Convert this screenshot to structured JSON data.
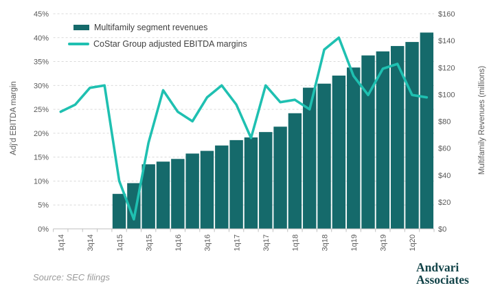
{
  "legend": {
    "bar_label": "Multifamily segment revenues",
    "line_label": "CoStar Group adjusted EBITDA margins"
  },
  "axes": {
    "left_title": "Adj'd EBITDA margin",
    "right_title": "Multifamily Revenues (millions)",
    "left_ticks": [
      "45%",
      "40%",
      "35%",
      "30%",
      "25%",
      "20%",
      "15%",
      "10%",
      "5%",
      "0%"
    ],
    "right_ticks": [
      "$160",
      "$140",
      "$120",
      "$100",
      "$80",
      "$60",
      "$40",
      "$20",
      "$0"
    ],
    "x_ticks": [
      "1q14",
      "3q14",
      "1q15",
      "3q15",
      "1q16",
      "3q16",
      "1q17",
      "3q17",
      "1q18",
      "3q18",
      "1q19",
      "3q19",
      "1q20"
    ]
  },
  "source": "Source: SEC filings",
  "logo": {
    "line1": "Andvari",
    "line2": "Associates"
  },
  "colors": {
    "bar": "#156a6b",
    "line": "#1fc0b1",
    "grid": "#d9d9d9",
    "axis": "#bfbfbf",
    "tick_text": "#595959",
    "legend_text": "#3f3f3f",
    "source_text": "#9a9a9a",
    "logo_text": "#134449"
  },
  "chart_data": {
    "type": "combo",
    "categories": [
      "1q14",
      "2q14",
      "3q14",
      "4q14",
      "1q15",
      "2q15",
      "3q15",
      "4q15",
      "1q16",
      "2q16",
      "3q16",
      "4q16",
      "1q17",
      "2q17",
      "3q17",
      "4q17",
      "1q18",
      "2q18",
      "3q18",
      "4q18",
      "1q19",
      "2q19",
      "3q19",
      "4q19",
      "1q20",
      "2q20"
    ],
    "series": [
      {
        "name": "Multifamily segment revenues",
        "type": "bar",
        "axis": "right",
        "unit": "$ millions",
        "values": [
          null,
          null,
          null,
          null,
          26,
          34,
          48,
          50,
          52,
          56,
          58,
          62,
          66,
          68,
          72,
          76,
          86,
          105,
          108,
          114,
          120,
          129,
          132,
          136,
          139,
          146
        ]
      },
      {
        "name": "CoStar Group adjusted EBITDA margins",
        "type": "line",
        "axis": "left",
        "unit": "%",
        "values": [
          24.5,
          26,
          29.5,
          30,
          10,
          2,
          18,
          29,
          24.5,
          22.5,
          27.5,
          30,
          26,
          19,
          30,
          26.5,
          27,
          25,
          37.5,
          40,
          32,
          28,
          33.5,
          34.5,
          28,
          27.5
        ]
      }
    ],
    "left_axis": {
      "label": "Adj'd EBITDA margin",
      "min": 0,
      "max": 45,
      "step": 5,
      "format": "percent"
    },
    "right_axis": {
      "label": "Multifamily Revenues (millions)",
      "min": 0,
      "max": 160,
      "step": 20,
      "format": "dollars"
    },
    "x_label_every": 2,
    "grid": "dashed-horizontal",
    "legend_position": "top-left-inside"
  }
}
